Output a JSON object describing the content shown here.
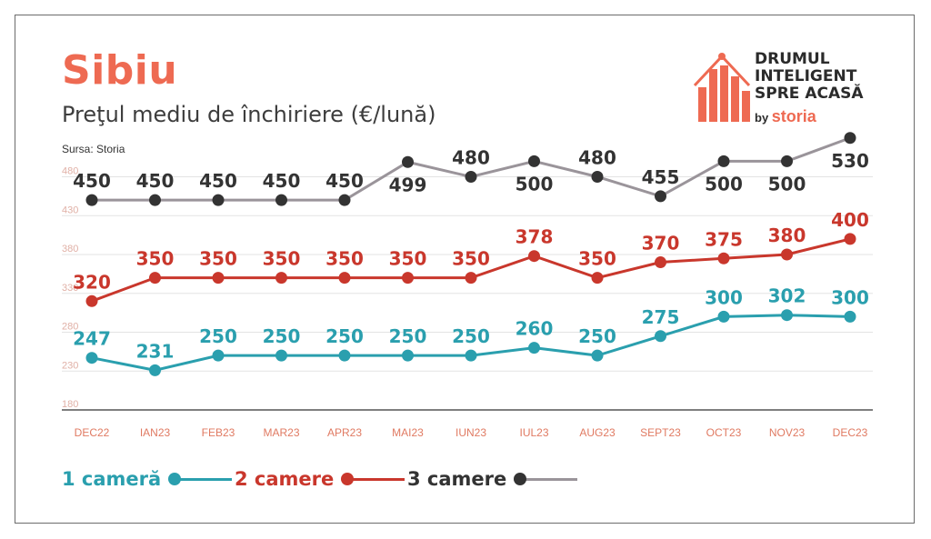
{
  "header": {
    "title": "Sibiu",
    "subtitle": "Preţul mediu de închiriere (€/lună)",
    "source": "Sursa: Storia"
  },
  "logo": {
    "line1": "DRUMUL",
    "line2": "INTELIGENT",
    "line3": "SPRE ACASĂ",
    "by": "by",
    "brand": "storia"
  },
  "colors": {
    "accent": "#ee6a52",
    "teal": "#2a9fae",
    "red": "#c9372c",
    "gray": "#9a949a",
    "dark": "#333333",
    "axis": "#e08a78"
  },
  "chart_data": {
    "type": "line",
    "title": "Preţul mediu de închiriere (€/lună)",
    "categories": [
      "DEC22",
      "IAN23",
      "FEB23",
      "MAR23",
      "APR23",
      "MAI23",
      "IUN23",
      "IUL23",
      "AUG23",
      "SEPT23",
      "OCT23",
      "NOV23",
      "DEC23"
    ],
    "yticks": [
      180,
      230,
      280,
      330,
      380,
      430,
      480
    ],
    "ylim": [
      180,
      530
    ],
    "grid": true,
    "legend": "bottom-left",
    "series": [
      {
        "name": "1 cameră",
        "color": "#2a9fae",
        "values": [
          247,
          231,
          250,
          250,
          250,
          250,
          250,
          260,
          250,
          275,
          300,
          302,
          300
        ],
        "label_pos": [
          "above",
          "above",
          "above",
          "above",
          "above",
          "above",
          "above",
          "above",
          "above",
          "above",
          "above",
          "above",
          "above"
        ]
      },
      {
        "name": "2 camere",
        "color": "#c9372c",
        "values": [
          320,
          350,
          350,
          350,
          350,
          350,
          350,
          378,
          350,
          370,
          375,
          380,
          400
        ],
        "label_pos": [
          "above",
          "above",
          "above",
          "above",
          "above",
          "above",
          "above",
          "above",
          "above",
          "above",
          "above",
          "above",
          "above"
        ]
      },
      {
        "name": "3 camere",
        "color": "#9a949a",
        "dot_color": "#333333",
        "values": [
          450,
          450,
          450,
          450,
          450,
          499,
          480,
          500,
          480,
          455,
          500,
          500,
          530
        ],
        "label_pos": [
          "above",
          "above",
          "above",
          "above",
          "above",
          "below",
          "above",
          "below",
          "above",
          "above",
          "below",
          "below",
          "below"
        ]
      }
    ]
  }
}
